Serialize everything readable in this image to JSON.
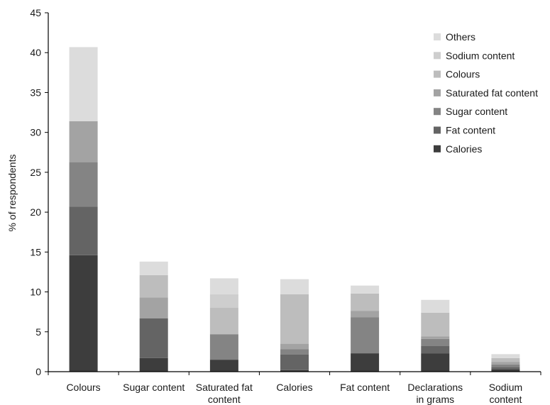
{
  "chart_data": {
    "type": "bar",
    "stacked": true,
    "title": "",
    "xlabel": "",
    "ylabel": "% of respondents",
    "ylim": [
      0,
      45
    ],
    "yticks": [
      0,
      5,
      10,
      15,
      20,
      25,
      30,
      35,
      40,
      45
    ],
    "grid": false,
    "legend_position": "top-right",
    "categories": [
      [
        "Colours"
      ],
      [
        "Sugar content"
      ],
      [
        "Saturated fat",
        "content"
      ],
      [
        "Calories"
      ],
      [
        "Fat content"
      ],
      [
        "Declarations",
        "in grams"
      ],
      [
        "Sodium",
        "content"
      ]
    ],
    "series": [
      {
        "name": "Calories",
        "color": "#3d3d3d",
        "values": [
          14.6,
          1.7,
          1.5,
          0.2,
          2.3,
          2.3,
          0.3
        ]
      },
      {
        "name": "Fat content",
        "color": "#646464",
        "values": [
          6.1,
          5.0,
          0.0,
          2.0,
          0.0,
          0.9,
          0.3
        ]
      },
      {
        "name": "Sugar content",
        "color": "#848484",
        "values": [
          5.6,
          0.0,
          3.2,
          0.6,
          4.5,
          0.9,
          0.3
        ]
      },
      {
        "name": "Saturated fat content",
        "color": "#a3a3a3",
        "values": [
          5.1,
          2.6,
          0.0,
          0.7,
          0.8,
          0.3,
          0.3
        ]
      },
      {
        "name": "Colours",
        "color": "#bdbdbd",
        "values": [
          0.0,
          2.8,
          3.3,
          6.2,
          2.2,
          3.0,
          0.5
        ]
      },
      {
        "name": "Sodium content",
        "color": "#cecece",
        "values": [
          0.0,
          0.0,
          1.7,
          0.0,
          0.0,
          0.0,
          0.0
        ]
      },
      {
        "name": "Others",
        "color": "#dcdcdc",
        "values": [
          9.3,
          1.7,
          2.0,
          1.9,
          1.0,
          1.6,
          0.5
        ]
      }
    ]
  }
}
